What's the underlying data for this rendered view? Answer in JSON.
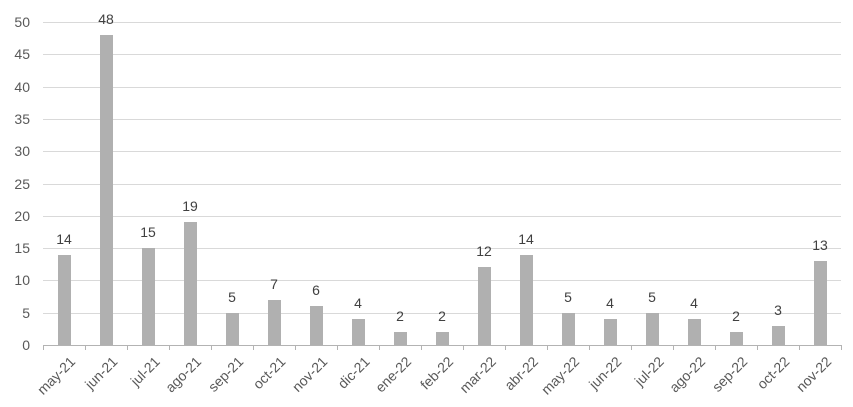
{
  "chart_data": {
    "type": "bar",
    "title": "",
    "xlabel": "",
    "ylabel": "",
    "categories": [
      "may-21",
      "jun-21",
      "jul-21",
      "ago-21",
      "sep-21",
      "oct-21",
      "nov-21",
      "dic-21",
      "ene-22",
      "feb-22",
      "mar-22",
      "abr-22",
      "may-22",
      "jun-22",
      "jul-22",
      "ago-22",
      "sep-22",
      "oct-22",
      "nov-22"
    ],
    "values": [
      14,
      48,
      15,
      19,
      5,
      7,
      6,
      4,
      2,
      2,
      12,
      14,
      5,
      4,
      5,
      4,
      2,
      3,
      13
    ],
    "data_labels": [
      14,
      48,
      15,
      19,
      5,
      7,
      6,
      4,
      2,
      2,
      12,
      14,
      5,
      4,
      5,
      4,
      2,
      3,
      13
    ],
    "ylim": [
      0,
      50
    ],
    "yticks": [
      0,
      5,
      10,
      15,
      20,
      25,
      30,
      35,
      40,
      45,
      50
    ],
    "grid": true,
    "legend_position": "none",
    "colors": {
      "bar": "#b0b0b0",
      "gridline": "#d9d9d9",
      "axis_line": "#b3b3b3",
      "tick_mark": "#b3b3b3",
      "axis_text": "#595959",
      "data_label_text": "#404040",
      "background": "#ffffff"
    }
  }
}
